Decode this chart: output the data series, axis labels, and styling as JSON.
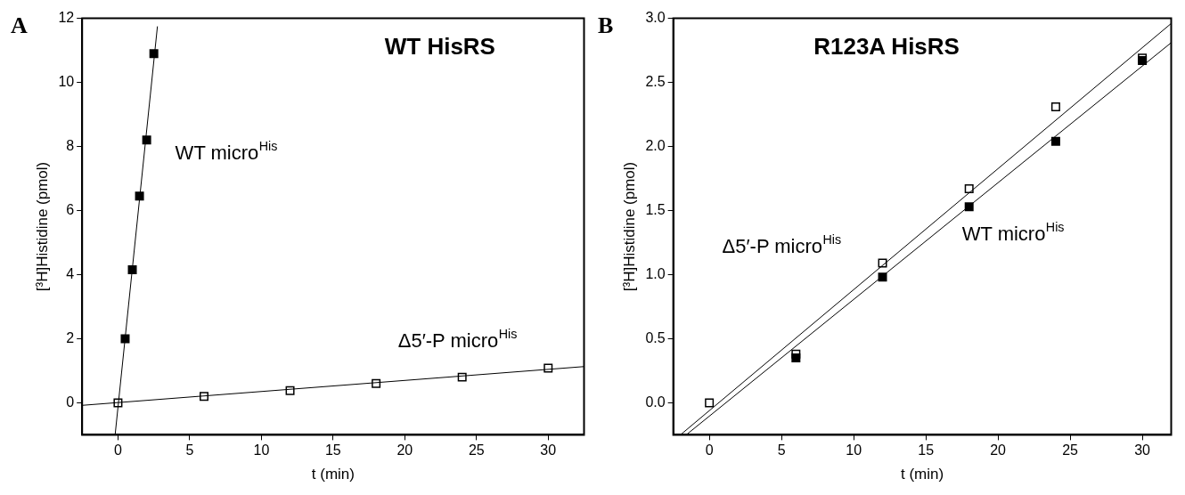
{
  "chart_data": [
    {
      "type": "scatter",
      "title": "WT HisRS",
      "xlabel": "t (min)",
      "ylabel": "[³H]Histidine (pmol)",
      "annotations": [
        "A"
      ],
      "xlim": [
        -2.5,
        32.5
      ],
      "xticks": [
        0,
        5,
        10,
        15,
        20,
        25,
        30
      ],
      "ylim": [
        -1,
        12
      ],
      "yticks": [
        0,
        2,
        4,
        6,
        8,
        10,
        12
      ],
      "grid": false,
      "legend": false,
      "marker": "square",
      "series": [
        {
          "name": "WT micro$^{His}$",
          "color": "#000000",
          "x": [
            0.5,
            1,
            1.5,
            2,
            2.5
          ],
          "values": [
            2.0,
            4.15,
            6.45,
            8.2,
            10.9
          ]
        },
        {
          "name": "Δ5′-P micro$^{His}$",
          "color": "#000000",
          "x": [
            0,
            6,
            12,
            18,
            24,
            30
          ],
          "values": [
            0,
            0.2,
            0.38,
            0.6,
            0.8,
            1.08
          ]
        },
        {
          "type": "line",
          "marker": "none",
          "color": "#000000",
          "x": [
            -0.2,
            2.75
          ],
          "values": [
            -1,
            11.75
          ]
        },
        {
          "type": "line",
          "marker": "none",
          "color": "#000000",
          "x": [
            -2.5,
            32.5
          ],
          "values": [
            -0.08,
            1.13
          ]
        }
      ]
    },
    {
      "type": "scatter",
      "title": "R123A HisRS",
      "xlabel": "t (min)",
      "ylabel": "[³H]Histidine (pmol)",
      "annotations": [
        "B"
      ],
      "xlim": [
        -2.5,
        32
      ],
      "xticks": [
        0,
        5,
        10,
        15,
        20,
        25,
        30
      ],
      "ylim": [
        -0.25,
        3.0
      ],
      "yticks": [
        {
          "value": 0,
          "label": "0.0"
        },
        0.5,
        {
          "value": 1,
          "label": "1.0"
        },
        1.5,
        {
          "value": 2,
          "label": "2.0"
        },
        2.5,
        {
          "value": 3,
          "label": "3.0"
        }
      ],
      "grid": false,
      "legend": false,
      "marker": "square",
      "series": [
        {
          "name": "WT micro$^{His}$",
          "color": "#000000",
          "x": [
            6,
            12,
            18,
            24,
            30
          ],
          "values": [
            0.35,
            0.98,
            1.53,
            2.04,
            2.67
          ]
        },
        {
          "name": "Δ5′-P micro$^{His}$",
          "color": "#000000",
          "x": [
            0,
            6,
            12,
            18,
            24,
            30
          ],
          "values": [
            0,
            0.38,
            1.09,
            1.67,
            2.31,
            2.69
          ]
        },
        {
          "type": "line",
          "marker": "none",
          "color": "#000000",
          "x": [
            -1.6,
            32
          ],
          "values": [
            -0.25,
            2.81
          ]
        },
        {
          "type": "line",
          "marker": "none",
          "color": "#000000",
          "x": [
            -2.0,
            32
          ],
          "values": [
            -0.25,
            2.96
          ]
        }
      ]
    }
  ]
}
